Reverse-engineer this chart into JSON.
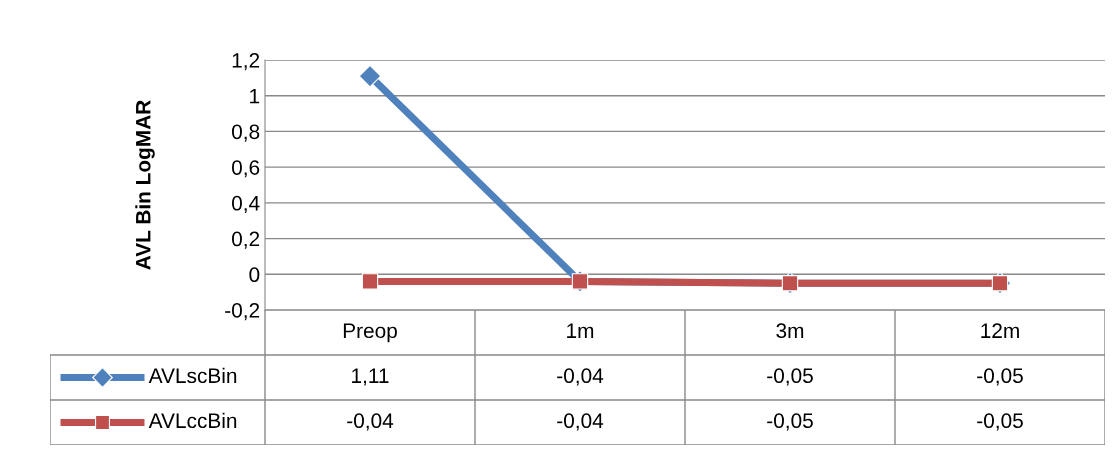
{
  "chart_data": {
    "type": "line",
    "ylabel": "AVL Bin LogMAR",
    "categories": [
      "Preop",
      "1m",
      "3m",
      "12m"
    ],
    "series": [
      {
        "name": "AVLscBin",
        "color": "#4f81bd",
        "marker": "diamond",
        "values": [
          1.11,
          -0.04,
          -0.05,
          -0.05
        ],
        "value_labels": [
          "1,11",
          "-0,04",
          "-0,05",
          "-0,05"
        ]
      },
      {
        "name": "AVLccBin",
        "color": "#c0504d",
        "marker": "square",
        "values": [
          -0.04,
          -0.04,
          -0.05,
          -0.05
        ],
        "value_labels": [
          "-0,04",
          "-0,04",
          "-0,05",
          "-0,05"
        ]
      }
    ],
    "ylim": [
      -0.2,
      1.2
    ],
    "yticks": [
      {
        "value": -0.2,
        "label": "-0,2"
      },
      0,
      {
        "value": 0.2,
        "label": "0,2"
      },
      {
        "value": 0.4,
        "label": "0,4"
      },
      {
        "value": 0.6,
        "label": "0,6"
      },
      {
        "value": 0.8,
        "label": "0,8"
      },
      1,
      {
        "value": 1.2,
        "label": "1,2"
      }
    ],
    "grid": "y",
    "legend": "bottom",
    "line_style": "solid"
  }
}
